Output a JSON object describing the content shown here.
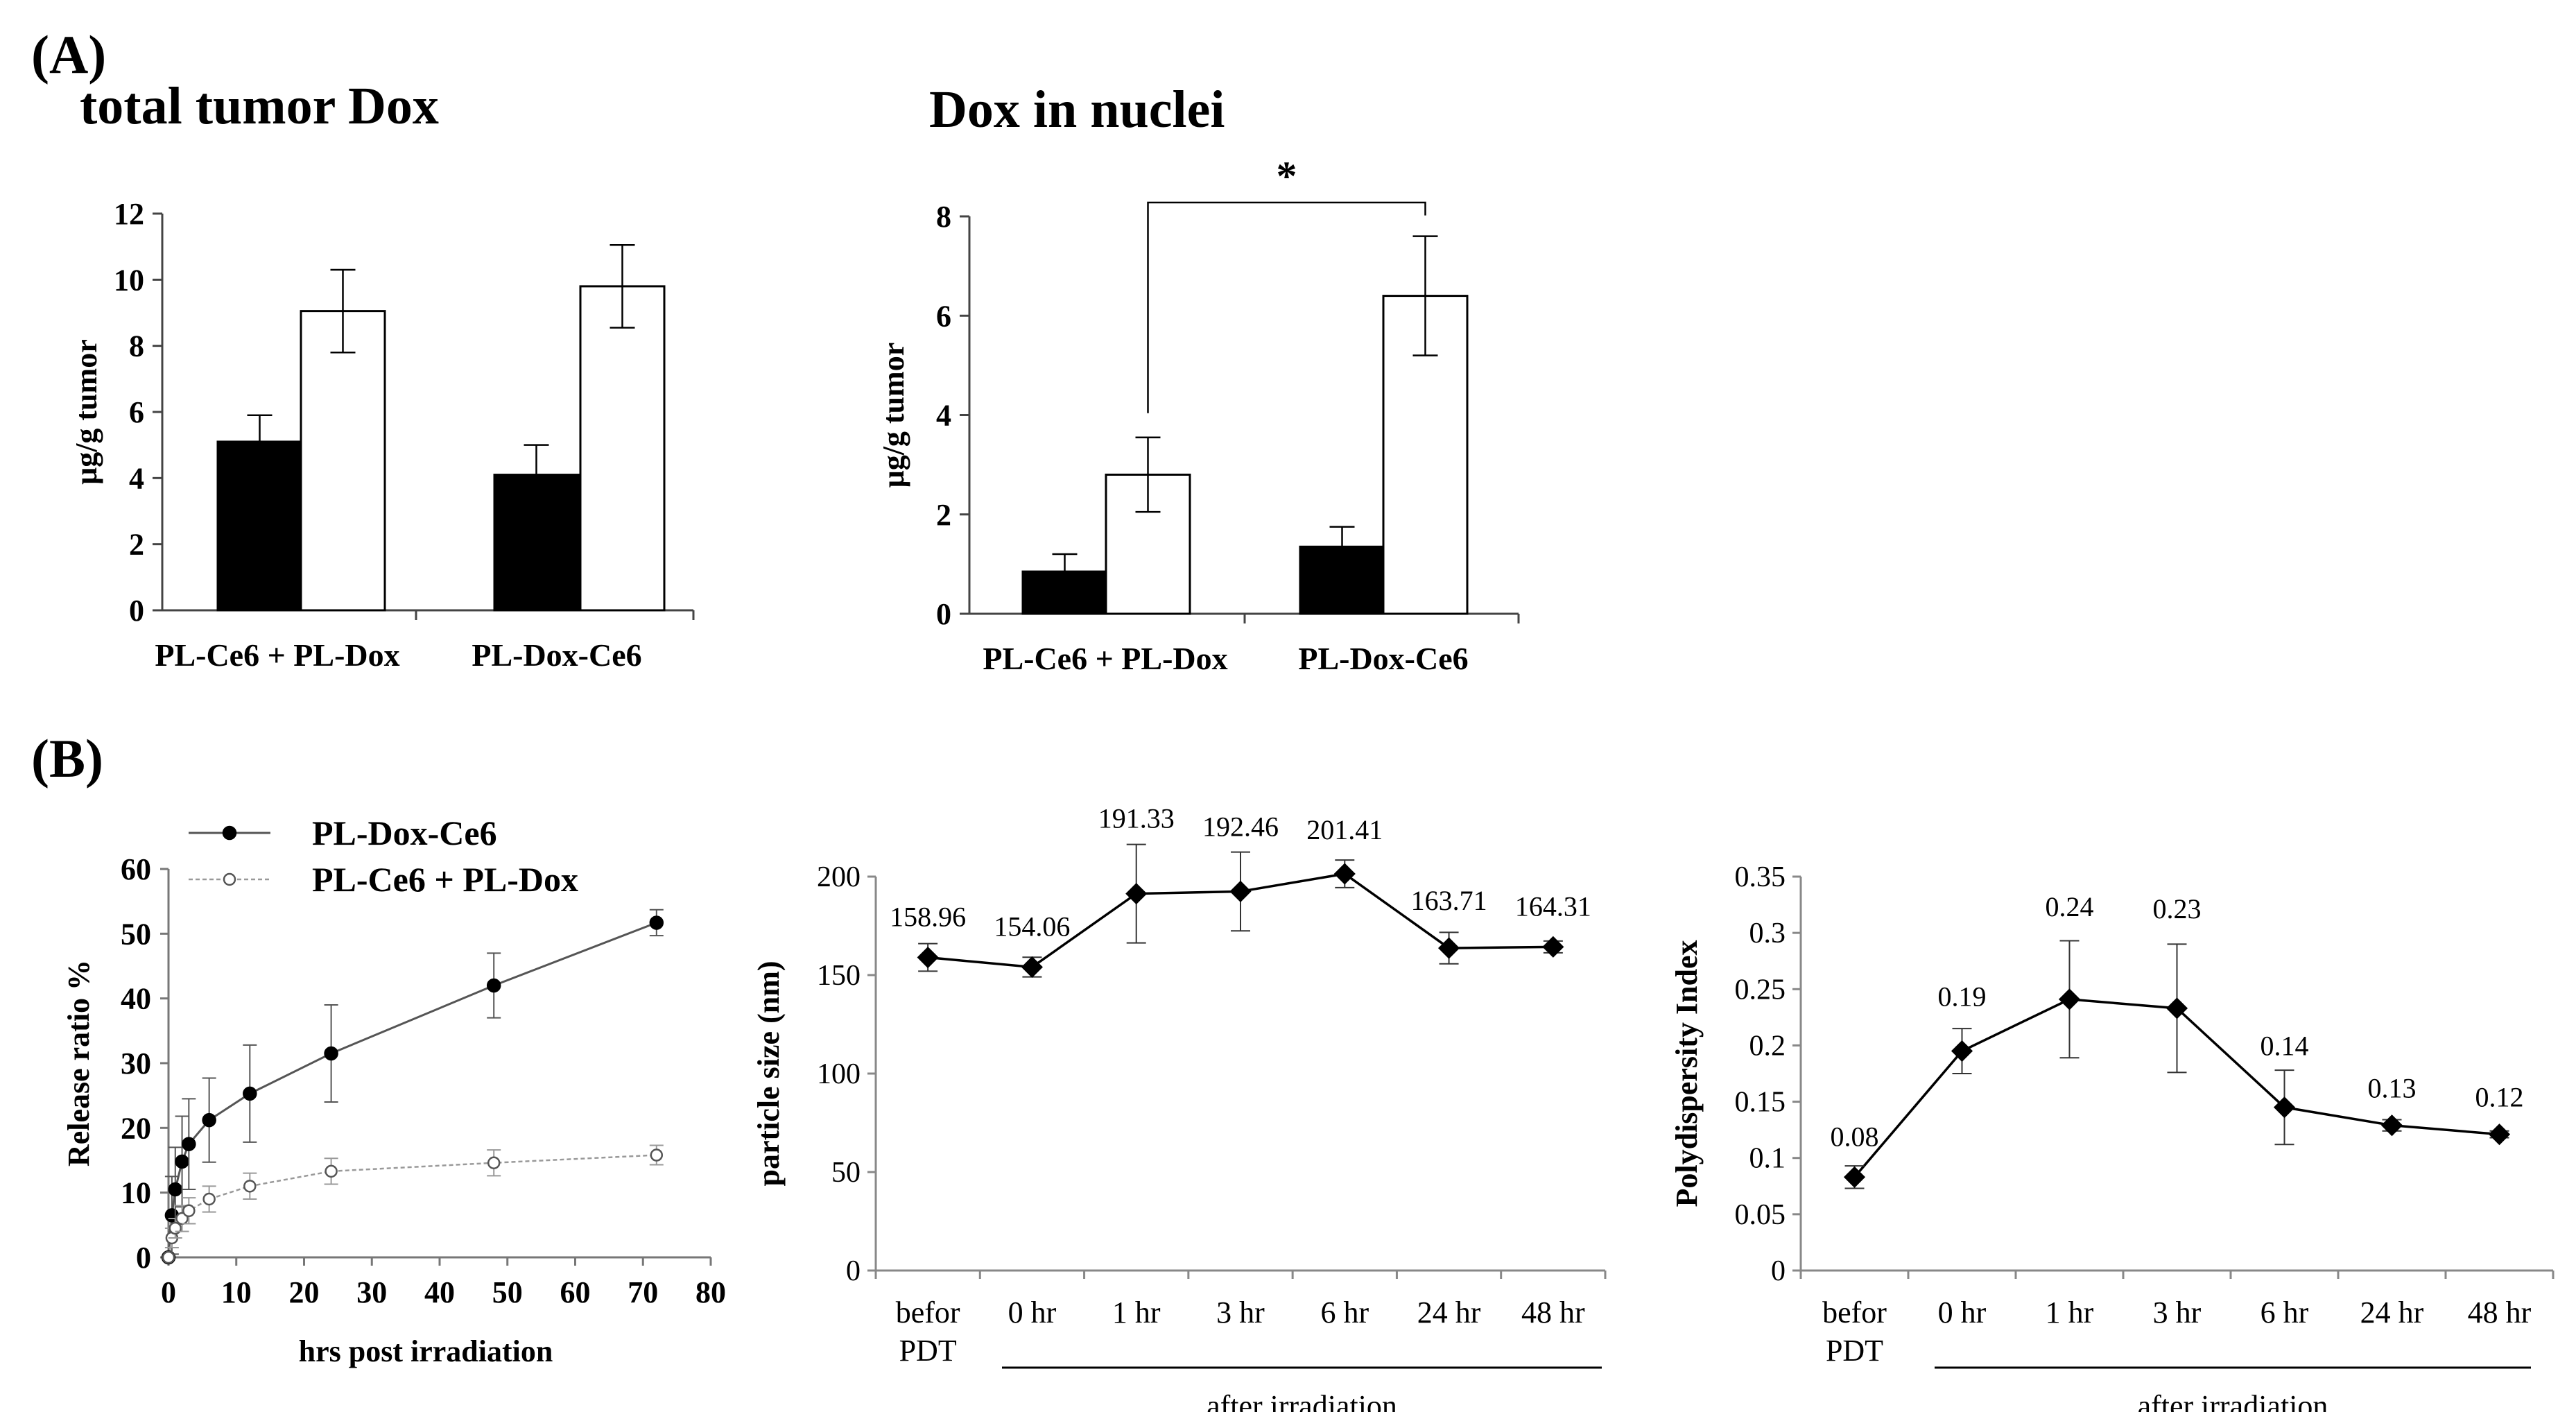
{
  "labels": {
    "panel_a": "(A)",
    "panel_b": "(B)"
  },
  "chart_data": [
    {
      "type": "bar",
      "title": "total tumor Dox",
      "ylabel": "μg/g tumor",
      "xlabel": "",
      "ylim": [
        0,
        12
      ],
      "yticks": [
        0,
        2,
        4,
        6,
        8,
        10,
        12
      ],
      "categories": [
        "PL-Ce6 + PL-Dox",
        "PL-Dox-Ce6"
      ],
      "series": [
        {
          "name": "black",
          "fill": "#000000",
          "values": [
            5.1,
            4.1
          ],
          "errors": [
            0.8,
            0.9
          ]
        },
        {
          "name": "white",
          "fill": "#ffffff",
          "values": [
            9.05,
            9.8
          ],
          "errors": [
            1.25,
            1.25
          ]
        }
      ]
    },
    {
      "type": "bar",
      "title": "Dox in nuclei",
      "ylabel": "μg/g tumor",
      "xlabel": "",
      "ylim": [
        0,
        8
      ],
      "yticks": [
        0,
        2,
        4,
        6,
        8
      ],
      "categories": [
        "PL-Ce6 + PL-Dox",
        "PL-Dox-Ce6"
      ],
      "series": [
        {
          "name": "black",
          "fill": "#000000",
          "values": [
            0.85,
            1.35
          ],
          "errors": [
            0.35,
            0.4
          ]
        },
        {
          "name": "white",
          "fill": "#ffffff",
          "values": [
            2.8,
            6.4
          ],
          "errors": [
            0.75,
            1.2
          ]
        }
      ],
      "significance": {
        "label": "*",
        "between": [
          "PL-Ce6 + PL-Dox white",
          "PL-Dox-Ce6 white"
        ]
      }
    },
    {
      "type": "line",
      "title": "",
      "xlabel": "hrs post irradiation",
      "ylabel": "Release ratio %",
      "xlim": [
        0,
        80
      ],
      "ylim": [
        0,
        60
      ],
      "xticks": [
        0,
        10,
        20,
        30,
        40,
        50,
        60,
        70,
        80
      ],
      "yticks": [
        0,
        10,
        20,
        30,
        40,
        50,
        60
      ],
      "legend_position": "top-left",
      "series": [
        {
          "name": "PL-Dox-Ce6",
          "marker": "filled",
          "x": [
            0,
            0.5,
            1,
            2,
            3,
            6,
            12,
            24,
            48,
            72
          ],
          "y": [
            0,
            6.5,
            10.5,
            14.8,
            17.5,
            21.2,
            25.3,
            31.5,
            42,
            51.7
          ],
          "err": [
            0,
            6,
            6.5,
            7,
            7,
            6.5,
            7.5,
            7.5,
            5,
            2
          ]
        },
        {
          "name": "PL-Ce6 + PL-Dox",
          "marker": "open",
          "x": [
            0,
            0.5,
            1,
            2,
            3,
            6,
            12,
            24,
            48,
            72
          ],
          "y": [
            0,
            3,
            4.5,
            6,
            7.2,
            9,
            11,
            13.3,
            14.6,
            15.8
          ],
          "err": [
            0,
            1.5,
            1.5,
            2,
            2,
            2,
            2,
            2,
            2,
            1.5
          ]
        }
      ]
    },
    {
      "type": "line",
      "title": "",
      "xlabel": "",
      "ylabel": "particle size (nm)",
      "ylim": [
        0,
        200
      ],
      "yticks": [
        0,
        50,
        100,
        150,
        200
      ],
      "categories": [
        "befor\nPDT",
        "0 hr",
        "1 hr",
        "3 hr",
        "6 hr",
        "24 hr",
        "48 hr"
      ],
      "group_label": "after irradiation",
      "values": [
        158.96,
        154.06,
        191.33,
        192.46,
        201.41,
        163.71,
        164.31
      ],
      "errors": [
        7,
        5,
        25,
        20,
        7,
        8,
        3
      ],
      "data_labels": [
        "158.96",
        "154.06",
        "191.33",
        "192.46",
        "201.41",
        "163.71",
        "164.31"
      ]
    },
    {
      "type": "line",
      "title": "",
      "xlabel": "",
      "ylabel": "Polydispersity Index",
      "ylim": [
        0,
        0.35
      ],
      "yticks": [
        "0",
        "0.05",
        "0.1",
        "0.15",
        "0.2",
        "0.25",
        "0.3",
        "0.35"
      ],
      "categories": [
        "befor\nPDT",
        "0 hr",
        "1 hr",
        "3 hr",
        "6 hr",
        "24 hr",
        "48 hr"
      ],
      "group_label": "after irradiation",
      "values": [
        0.083,
        0.195,
        0.241,
        0.233,
        0.145,
        0.129,
        0.121
      ],
      "errors": [
        0.01,
        0.02,
        0.052,
        0.057,
        0.033,
        0.005,
        0.003
      ],
      "data_labels": [
        "0.08",
        "0.19",
        "0.24",
        "0.23",
        "0.14",
        "0.13",
        "0.12"
      ]
    }
  ]
}
